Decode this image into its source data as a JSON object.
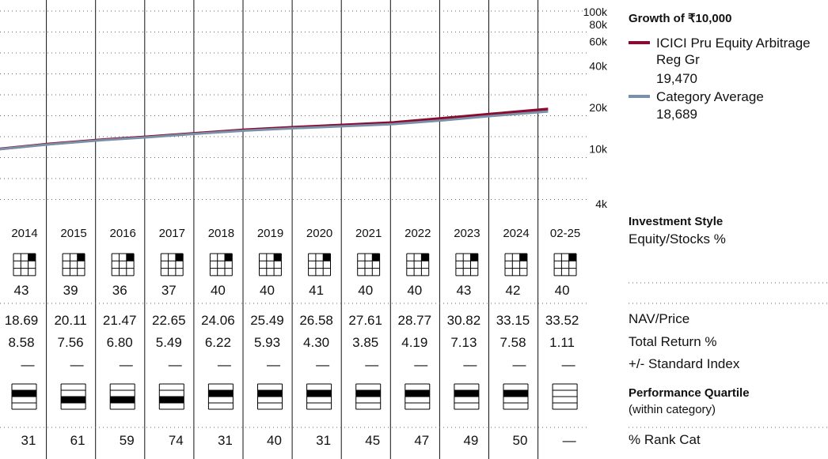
{
  "chart_data": {
    "type": "line",
    "title": "Growth of ₹10,000",
    "yscale": "log",
    "ylim": [
      3500,
      100000
    ],
    "y_ticks": [
      "4k",
      "10k",
      "20k",
      "40k",
      "60k",
      "80k",
      "100k"
    ],
    "x_range": [
      2014,
      2025.2
    ],
    "series": [
      {
        "name": "ICICI Pru Equity Arbitrage Reg Gr",
        "end_value": "19,470",
        "color": "#8b0a2f",
        "x": [
          2014,
          2015,
          2016,
          2017,
          2018,
          2019,
          2020,
          2021,
          2022,
          2023,
          2024,
          2025.15
        ],
        "y": [
          10000,
          10860,
          11600,
          12240,
          13000,
          13770,
          14360,
          14920,
          15540,
          16650,
          17910,
          19470
        ]
      },
      {
        "name": "Category Average",
        "end_value": "18,689",
        "color": "#7a8fa8",
        "x": [
          2014,
          2015,
          2016,
          2017,
          2018,
          2019,
          2020,
          2021,
          2022,
          2023,
          2024,
          2025.15
        ],
        "y": [
          9950,
          10780,
          11520,
          12130,
          12880,
          13590,
          14130,
          14600,
          15120,
          16100,
          17330,
          18689
        ]
      }
    ]
  },
  "years": [
    "2014",
    "2015",
    "2016",
    "2017",
    "2018",
    "2019",
    "2020",
    "2021",
    "2022",
    "2023",
    "2024",
    "02-25"
  ],
  "investment_style": {
    "title": "Investment Style",
    "subtitle": "Equity/Stocks %",
    "equity_pct": [
      "43",
      "39",
      "36",
      "37",
      "40",
      "40",
      "41",
      "40",
      "40",
      "43",
      "42",
      "40"
    ]
  },
  "nav_price": {
    "label": "NAV/Price",
    "values": [
      "18.69",
      "20.11",
      "21.47",
      "22.65",
      "24.06",
      "25.49",
      "26.58",
      "27.61",
      "28.77",
      "30.82",
      "33.15",
      "33.52"
    ]
  },
  "total_return": {
    "label": "Total Return %",
    "values": [
      "8.58",
      "7.56",
      "6.80",
      "5.49",
      "6.22",
      "5.93",
      "4.30",
      "3.85",
      "4.19",
      "7.13",
      "7.58",
      "1.11"
    ]
  },
  "vs_index": {
    "label": "+/- Standard Index",
    "values": [
      "—",
      "—",
      "—",
      "—",
      "—",
      "—",
      "—",
      "—",
      "—",
      "—",
      "—",
      "—"
    ]
  },
  "performance_quartile": {
    "title": "Performance Quartile",
    "subtitle": "(within category)",
    "quartiles": [
      2,
      3,
      3,
      3,
      2,
      2,
      2,
      2,
      2,
      2,
      2,
      0
    ]
  },
  "rank_cat": {
    "label": "% Rank Cat",
    "values": [
      "31",
      "61",
      "59",
      "74",
      "31",
      "40",
      "31",
      "45",
      "47",
      "49",
      "50",
      "—"
    ]
  }
}
